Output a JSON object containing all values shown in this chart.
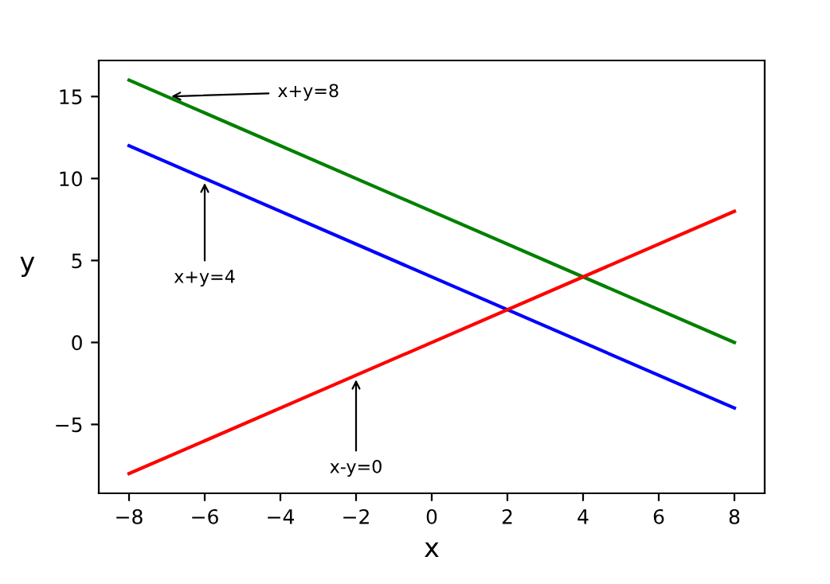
{
  "chart_data": {
    "type": "line",
    "xlabel": "x",
    "ylabel": "y",
    "series": [
      {
        "color": "#008000",
        "values": [
          16,
          0
        ]
      },
      {
        "color": "#0000ff",
        "values": [
          12,
          -4
        ]
      },
      {
        "color": "#ff0000",
        "values": [
          -8,
          8
        ]
      }
    ],
    "x": [
      -8,
      8
    ],
    "annotations": [
      {
        "text": "x+y=8",
        "x": -7,
        "y": 15
      },
      {
        "text": "x+y=4",
        "x": -6,
        "y": 10
      },
      {
        "text": "x-y=0",
        "x": -2,
        "y": -2
      }
    ],
    "xlim": [
      -8.8,
      8.8
    ],
    "xticks": [
      {
        "value": -8,
        "label": "−8"
      },
      {
        "value": -6,
        "label": "−6"
      },
      {
        "value": -4,
        "label": "−4"
      },
      {
        "value": -2,
        "label": "−2"
      },
      0,
      2,
      4,
      6,
      8
    ],
    "ylim": [
      -9.2,
      17.2
    ],
    "yticks": [
      {
        "value": -5,
        "label": "−5"
      },
      0,
      5,
      10,
      15
    ],
    "grid": false,
    "legend": false,
    "marker": "none",
    "line_style": "solid"
  }
}
